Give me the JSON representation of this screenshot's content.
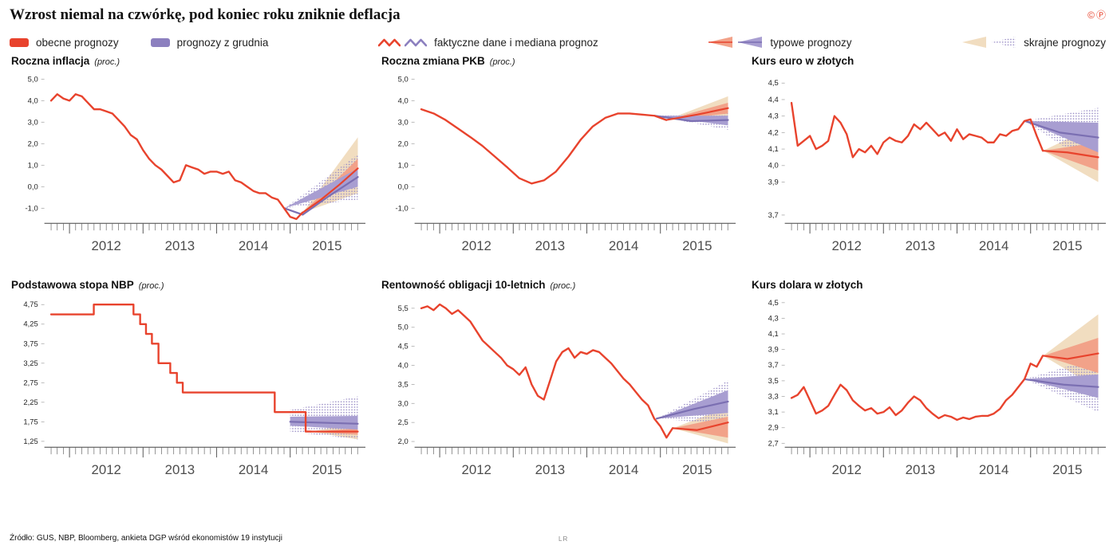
{
  "header": {
    "title": "Wzrost niemal na czwórkę, pod koniec roku zniknie deflacja",
    "copyright": "©",
    "press": "Ⓟ"
  },
  "legend": {
    "current": "obecne prognozy",
    "december": "prognozy z grudnia",
    "actual_median": "faktyczne dane i mediana prognoz",
    "typical": "typowe prognozy",
    "extreme": "skrajne prognozy"
  },
  "footer": {
    "source": "Źródło: GUS, NBP, Bloomberg, ankieta DGP wśród ekonomistów 19 instytucji",
    "credit": "LR"
  },
  "colors": {
    "red": "#e8432d",
    "orange_band": "#f2a289",
    "purple": "#7b6fb2",
    "purple_band": "#a89ed1",
    "beige": "#f1ddc0",
    "dot": "#9a8ec6",
    "axis": "#444444",
    "tick": "#666666",
    "year_label": "#4d4d4d",
    "y_label": "#222222"
  },
  "axis_years": [
    "2012",
    "2013",
    "2014",
    "2015"
  ],
  "chart_data": [
    {
      "id": "inflacja",
      "type": "line",
      "title": "Roczna inflacja",
      "unit": "(proc.)",
      "xlim": [
        2011.68,
        2015.98
      ],
      "ylim": [
        -1.7,
        5.2
      ],
      "y_ticks": {
        "values": [
          5,
          4,
          3,
          2,
          1,
          0,
          -1
        ],
        "labels": [
          "5,0",
          "4,0",
          "3,0",
          "2,0",
          "1,0",
          "0,0",
          "-1,0"
        ]
      },
      "actual": {
        "x_start": 2011.75,
        "x_step": 0.08333,
        "y": [
          4.0,
          4.3,
          4.1,
          4.0,
          4.3,
          4.2,
          3.9,
          3.6,
          3.6,
          3.5,
          3.4,
          3.1,
          2.8,
          2.4,
          2.2,
          1.7,
          1.3,
          1.0,
          0.8,
          0.5,
          0.2,
          0.3,
          1.0,
          0.9,
          0.8,
          0.6,
          0.7,
          0.7,
          0.6,
          0.7,
          0.3,
          0.2,
          0.0,
          -0.2,
          -0.3,
          -0.3,
          -0.5,
          -0.6,
          -1.0,
          -1.4,
          -1.5,
          -1.2
        ]
      },
      "forecast_december": {
        "median": {
          "x": [
            2014.92,
            2015.17,
            2015.5,
            2015.92
          ],
          "y": [
            -1.0,
            -1.3,
            -0.5,
            0.45
          ]
        },
        "band": {
          "x": [
            2014.92,
            2015.92
          ],
          "low": [
            -1.0,
            0.0
          ],
          "high": [
            -1.0,
            0.85
          ]
        },
        "extreme": {
          "x": [
            2014.92,
            2015.92
          ],
          "low": [
            -1.0,
            -0.6
          ],
          "high": [
            -1.0,
            1.5
          ]
        }
      },
      "forecast_current": {
        "median": {
          "x": [
            2015.17,
            2015.42,
            2015.67,
            2015.92
          ],
          "y": [
            -1.2,
            -0.6,
            0.1,
            0.85
          ]
        },
        "band": {
          "x": [
            2015.17,
            2015.92
          ],
          "low": [
            -1.2,
            0.4
          ],
          "high": [
            -1.2,
            1.3
          ]
        },
        "extreme": {
          "x": [
            2015.17,
            2015.92
          ],
          "low": [
            -1.2,
            -0.3
          ],
          "high": [
            -1.2,
            2.3
          ]
        }
      }
    },
    {
      "id": "pkb",
      "type": "line",
      "title": "Roczna zmiana PKB",
      "unit": "(proc.)",
      "xlim": [
        2011.68,
        2015.98
      ],
      "ylim": [
        -1.7,
        5.2
      ],
      "y_ticks": {
        "values": [
          5,
          4,
          3,
          2,
          1,
          0,
          -1
        ],
        "labels": [
          "5,0",
          "4,0",
          "3,0",
          "2,0",
          "1,0",
          "0,0",
          "-1,0"
        ]
      },
      "actual": {
        "x": [
          2011.75,
          2011.92,
          2012.08,
          2012.25,
          2012.42,
          2012.58,
          2012.75,
          2012.92,
          2013.08,
          2013.25,
          2013.42,
          2013.58,
          2013.75,
          2013.92,
          2014.08,
          2014.25,
          2014.42,
          2014.58,
          2014.75,
          2014.92,
          2015.08
        ],
        "y": [
          3.6,
          3.4,
          3.1,
          2.7,
          2.3,
          1.9,
          1.4,
          0.9,
          0.4,
          0.15,
          0.3,
          0.7,
          1.4,
          2.2,
          2.8,
          3.2,
          3.4,
          3.4,
          3.35,
          3.3,
          3.1
        ]
      },
      "forecast_december": {
        "median": {
          "x": [
            2014.92,
            2015.42,
            2015.92
          ],
          "y": [
            3.3,
            3.05,
            3.1
          ]
        },
        "band": {
          "x": [
            2014.92,
            2015.92
          ],
          "low": [
            3.3,
            2.85
          ],
          "high": [
            3.3,
            3.3
          ]
        },
        "extreme": {
          "x": [
            2014.92,
            2015.92
          ],
          "low": [
            3.3,
            2.65
          ],
          "high": [
            3.3,
            3.5
          ]
        }
      },
      "forecast_current": {
        "median": {
          "x": [
            2015.08,
            2015.5,
            2015.92
          ],
          "y": [
            3.1,
            3.35,
            3.65
          ]
        },
        "band": {
          "x": [
            2015.08,
            2015.92
          ],
          "low": [
            3.1,
            3.4
          ],
          "high": [
            3.1,
            3.9
          ]
        },
        "extreme": {
          "x": [
            2015.08,
            2015.92
          ],
          "low": [
            3.1,
            3.15
          ],
          "high": [
            3.1,
            4.2
          ]
        }
      }
    },
    {
      "id": "euro",
      "type": "line",
      "title": "Kurs euro w złotych",
      "unit": "",
      "xlim": [
        2011.68,
        2015.98
      ],
      "ylim": [
        3.65,
        4.55
      ],
      "y_ticks": {
        "values": [
          4.5,
          4.4,
          4.3,
          4.2,
          4.1,
          4.0,
          3.9,
          3.7
        ],
        "labels": [
          "4,5",
          "4,4",
          "4,3",
          "4,2",
          "4,1",
          "4,0",
          "3,9",
          "3,7"
        ]
      },
      "actual": {
        "x_start": 2011.75,
        "x_step": 0.08333,
        "y": [
          4.38,
          4.12,
          4.15,
          4.18,
          4.1,
          4.12,
          4.15,
          4.3,
          4.26,
          4.19,
          4.05,
          4.1,
          4.08,
          4.12,
          4.07,
          4.14,
          4.17,
          4.15,
          4.14,
          4.18,
          4.25,
          4.22,
          4.26,
          4.22,
          4.18,
          4.2,
          4.15,
          4.22,
          4.16,
          4.19,
          4.18,
          4.17,
          4.14,
          4.14,
          4.19,
          4.18,
          4.21,
          4.22,
          4.27,
          4.28,
          4.18,
          4.09
        ]
      },
      "forecast_december": {
        "median": {
          "x": [
            2014.92,
            2015.4,
            2015.92
          ],
          "y": [
            4.27,
            4.2,
            4.17
          ]
        },
        "band": {
          "x": [
            2014.92,
            2015.92
          ],
          "low": [
            4.27,
            4.08
          ],
          "high": [
            4.27,
            4.26
          ]
        },
        "extreme": {
          "x": [
            2014.92,
            2015.92
          ],
          "low": [
            4.27,
            3.98
          ],
          "high": [
            4.27,
            4.35
          ]
        }
      },
      "forecast_current": {
        "median": {
          "x": [
            2015.17,
            2015.5,
            2015.92
          ],
          "y": [
            4.09,
            4.08,
            4.05
          ]
        },
        "band": {
          "x": [
            2015.17,
            2015.92
          ],
          "low": [
            4.09,
            3.97
          ],
          "high": [
            4.09,
            4.14
          ]
        },
        "extreme": {
          "x": [
            2015.17,
            2015.92
          ],
          "low": [
            4.09,
            3.9
          ],
          "high": [
            4.09,
            4.25
          ]
        }
      }
    },
    {
      "id": "stopa-nbp",
      "type": "line",
      "title": "Podstawowa stopa NBP",
      "unit": "(proc.)",
      "xlim": [
        2011.68,
        2015.98
      ],
      "ylim": [
        1.1,
        4.9
      ],
      "y_ticks": {
        "values": [
          4.75,
          4.25,
          3.75,
          3.25,
          2.75,
          2.25,
          1.75,
          1.25
        ],
        "labels": [
          "4,75",
          "4,25",
          "3,75",
          "3,25",
          "2,75",
          "2,25",
          "1,75",
          "1,25"
        ]
      },
      "actual": {
        "x": [
          2011.75,
          2012.33,
          2012.33,
          2012.87,
          2012.87,
          2012.96,
          2012.96,
          2013.04,
          2013.04,
          2013.12,
          2013.12,
          2013.21,
          2013.21,
          2013.37,
          2013.37,
          2013.46,
          2013.46,
          2013.54,
          2013.54,
          2014.79,
          2014.79,
          2015.21,
          2015.21,
          2015.28
        ],
        "y": [
          4.5,
          4.5,
          4.75,
          4.75,
          4.5,
          4.5,
          4.25,
          4.25,
          4.0,
          4.0,
          3.75,
          3.75,
          3.25,
          3.25,
          3.0,
          3.0,
          2.75,
          2.75,
          2.5,
          2.5,
          2.0,
          2.0,
          1.5,
          1.5
        ]
      },
      "forecast_december": {
        "median": {
          "x": [
            2015.0,
            2015.92
          ],
          "y": [
            1.75,
            1.7
          ]
        },
        "band": {
          "x": [
            2015.0,
            2015.92
          ],
          "low": [
            1.65,
            1.55
          ],
          "high": [
            1.88,
            1.9
          ]
        },
        "extreme": {
          "x": [
            2015.0,
            2015.92
          ],
          "low": [
            1.5,
            1.3
          ],
          "high": [
            2.05,
            2.4
          ]
        }
      },
      "forecast_current": {
        "median": {
          "x": [
            2015.28,
            2015.92
          ],
          "y": [
            1.5,
            1.5
          ]
        },
        "band": {
          "x": [
            2015.28,
            2015.92
          ],
          "low": [
            1.5,
            1.42
          ],
          "high": [
            1.5,
            1.58
          ]
        },
        "extreme": {
          "x": [
            2015.28,
            2015.92
          ],
          "low": [
            1.5,
            1.3
          ],
          "high": [
            1.5,
            1.72
          ]
        }
      }
    },
    {
      "id": "obligacje",
      "type": "line",
      "title": "Rentowność obligacji 10-letnich",
      "unit": "(proc.)",
      "xlim": [
        2011.68,
        2015.98
      ],
      "ylim": [
        1.85,
        5.75
      ],
      "y_ticks": {
        "values": [
          5.5,
          5.0,
          4.5,
          4.0,
          3.5,
          3.0,
          2.5,
          2.0
        ],
        "labels": [
          "5,5",
          "5,0",
          "4,5",
          "4,0",
          "3,5",
          "3,0",
          "2,5",
          "2,0"
        ]
      },
      "actual": {
        "x_start": 2011.75,
        "x_step": 0.08333,
        "y": [
          5.5,
          5.55,
          5.45,
          5.6,
          5.5,
          5.35,
          5.45,
          5.3,
          5.15,
          4.9,
          4.65,
          4.5,
          4.35,
          4.2,
          4.0,
          3.9,
          3.75,
          3.95,
          3.5,
          3.2,
          3.1,
          3.6,
          4.1,
          4.35,
          4.45,
          4.2,
          4.35,
          4.3,
          4.4,
          4.35,
          4.2,
          4.05,
          3.85,
          3.65,
          3.5,
          3.3,
          3.1,
          2.95,
          2.6,
          2.4,
          2.1,
          2.35
        ]
      },
      "forecast_december": {
        "median": {
          "x": [
            2014.95,
            2015.45,
            2015.92
          ],
          "y": [
            2.6,
            2.85,
            3.05
          ]
        },
        "band": {
          "x": [
            2014.95,
            2015.92
          ],
          "low": [
            2.6,
            2.75
          ],
          "high": [
            2.6,
            3.35
          ]
        },
        "extreme": {
          "x": [
            2014.95,
            2015.92
          ],
          "low": [
            2.6,
            2.45
          ],
          "high": [
            2.6,
            3.6
          ]
        }
      },
      "forecast_current": {
        "median": {
          "x": [
            2015.17,
            2015.5,
            2015.92
          ],
          "y": [
            2.35,
            2.3,
            2.5
          ]
        },
        "band": {
          "x": [
            2015.17,
            2015.92
          ],
          "low": [
            2.35,
            2.1
          ],
          "high": [
            2.35,
            2.65
          ]
        },
        "extreme": {
          "x": [
            2015.17,
            2015.92
          ],
          "low": [
            2.35,
            1.95
          ],
          "high": [
            2.35,
            2.9
          ]
        }
      }
    },
    {
      "id": "dolar",
      "type": "line",
      "title": "Kurs dolara w złotych",
      "unit": "",
      "xlim": [
        2011.68,
        2015.98
      ],
      "ylim": [
        2.65,
        4.55
      ],
      "y_ticks": {
        "values": [
          4.5,
          4.3,
          4.1,
          3.9,
          3.7,
          3.5,
          3.3,
          3.1,
          2.9,
          2.7
        ],
        "labels": [
          "4,5",
          "4,3",
          "4,1",
          "3,9",
          "3,7",
          "3,5",
          "3,3",
          "3,1",
          "2,9",
          "2,7"
        ]
      },
      "actual": {
        "x_start": 2011.75,
        "x_step": 0.08333,
        "y": [
          3.28,
          3.32,
          3.42,
          3.25,
          3.08,
          3.12,
          3.18,
          3.32,
          3.45,
          3.38,
          3.25,
          3.18,
          3.12,
          3.15,
          3.08,
          3.1,
          3.16,
          3.06,
          3.12,
          3.22,
          3.3,
          3.25,
          3.15,
          3.08,
          3.02,
          3.06,
          3.04,
          3.0,
          3.03,
          3.01,
          3.04,
          3.05,
          3.05,
          3.08,
          3.14,
          3.25,
          3.32,
          3.42,
          3.52,
          3.72,
          3.68,
          3.82
        ]
      },
      "forecast_december": {
        "median": {
          "x": [
            2014.92,
            2015.45,
            2015.92
          ],
          "y": [
            3.52,
            3.45,
            3.42
          ]
        },
        "band": {
          "x": [
            2014.92,
            2015.92
          ],
          "low": [
            3.52,
            3.28
          ],
          "high": [
            3.52,
            3.58
          ]
        },
        "extreme": {
          "x": [
            2014.92,
            2015.92
          ],
          "low": [
            3.52,
            3.1
          ],
          "high": [
            3.52,
            3.8
          ]
        }
      },
      "forecast_current": {
        "median": {
          "x": [
            2015.17,
            2015.5,
            2015.92
          ],
          "y": [
            3.82,
            3.78,
            3.85
          ]
        },
        "band": {
          "x": [
            2015.17,
            2015.92
          ],
          "low": [
            3.82,
            3.6
          ],
          "high": [
            3.82,
            4.05
          ]
        },
        "extreme": {
          "x": [
            2015.17,
            2015.92
          ],
          "low": [
            3.82,
            3.4
          ],
          "high": [
            3.82,
            4.35
          ]
        }
      }
    }
  ]
}
